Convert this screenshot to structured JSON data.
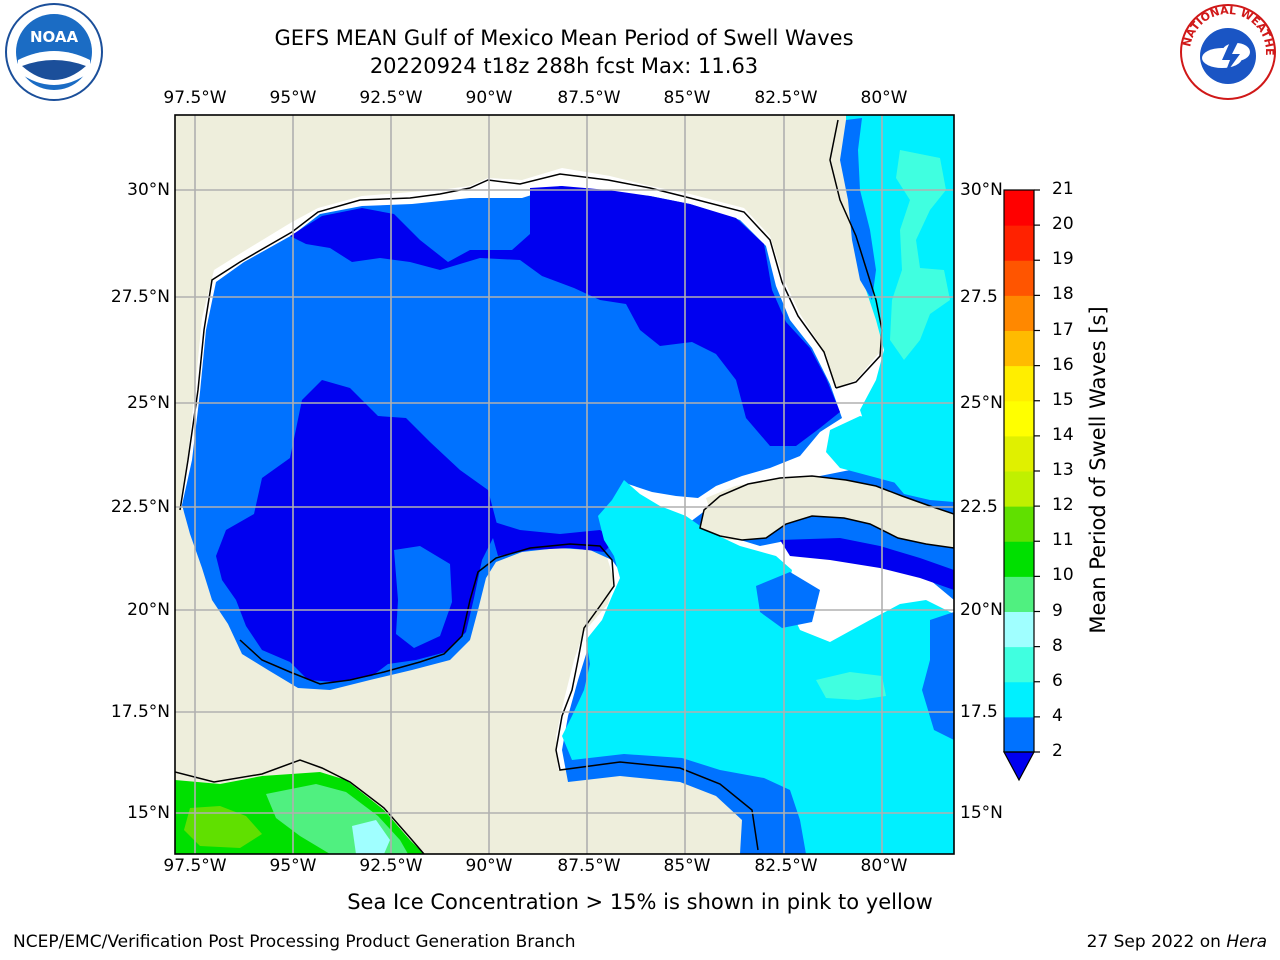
{
  "title_line1": "GEFS MEAN Gulf of Mexico Mean Period of Swell Waves",
  "title_line2": "20220924 t18z 288h fcst   Max: 11.63",
  "logos": {
    "left": "noaa-logo",
    "right": "national-weather-service-logo",
    "left_text": "NOAA",
    "right_text": "NATIONAL WEATHER SERVICE"
  },
  "lon_ticks": [
    "97.5°W",
    "95°W",
    "92.5°W",
    "90°W",
    "87.5°W",
    "85°W",
    "82.5°W",
    "80°W"
  ],
  "lat_ticks_left": [
    "30°N",
    "27.5°N",
    "25°N",
    "22.5°N",
    "20°N",
    "17.5°N",
    "15°N"
  ],
  "lat_ticks_right": [
    "30°N",
    "27.5",
    "25°N",
    "22.5",
    "20°N",
    "17.5",
    "15°N"
  ],
  "colorbar": {
    "label": "Mean Period of Swell Waves [s]",
    "levels": [
      "2",
      "4",
      "6",
      "8",
      "9",
      "10",
      "11",
      "12",
      "13",
      "14",
      "15",
      "16",
      "17",
      "18",
      "19",
      "20",
      "21"
    ],
    "colors": [
      "#0000f0",
      "#0072ff",
      "#00f0ff",
      "#40ffe0",
      "#a0ffff",
      "#50f080",
      "#00e000",
      "#60e000",
      "#c0f000",
      "#e0f000",
      "#ffff00",
      "#ffee00",
      "#ffbb00",
      "#ff8800",
      "#ff5500",
      "#ff2200",
      "#ff0000"
    ],
    "extend": "min"
  },
  "map_colors": {
    "land": "#eeeedc",
    "water_missing": "#ffffff",
    "coast": "#000000",
    "grid": "#b0b0b0"
  },
  "subtitle": "Sea Ice Concentration > 15% is shown in pink to yellow",
  "footer_left": "NCEP/EMC/Verification Post Processing Product Generation Branch",
  "footer_right_prefix": "27 Sep 2022 on",
  "footer_right_machine": "Hera"
}
